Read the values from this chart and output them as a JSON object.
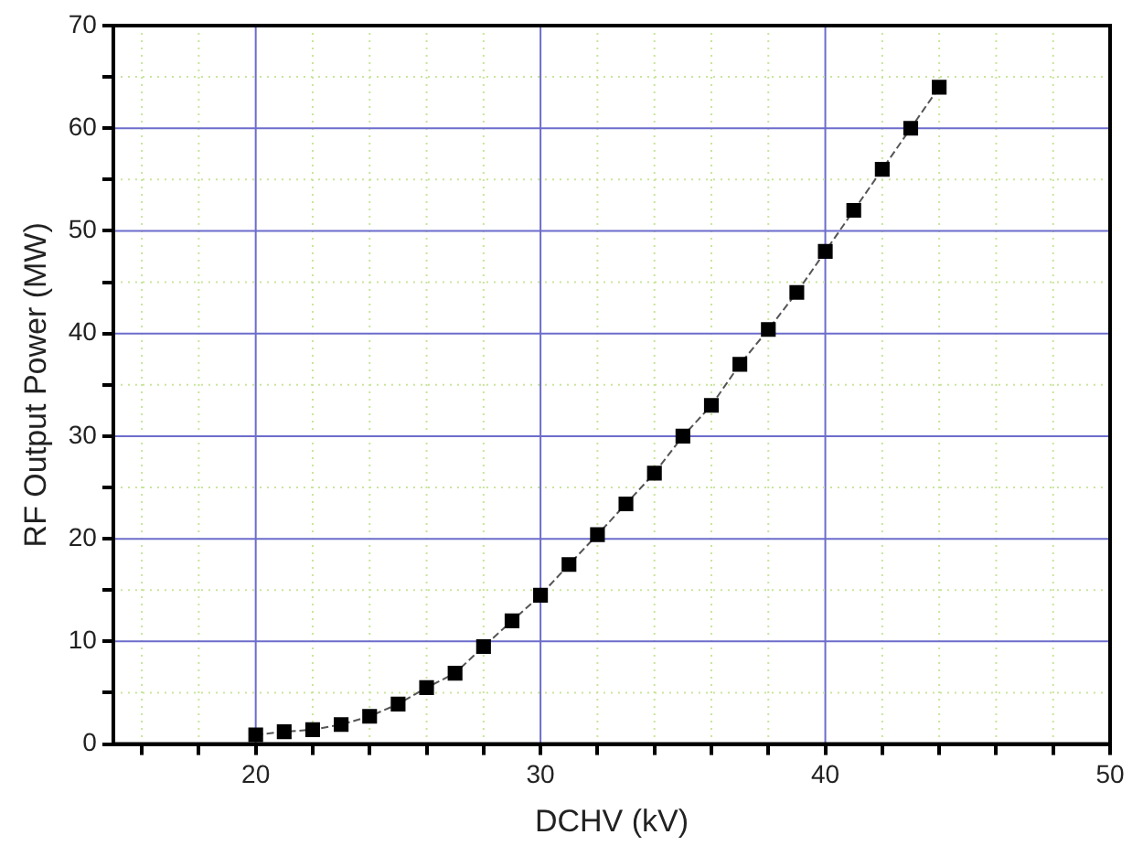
{
  "chart_data": {
    "type": "line",
    "xlabel": "DCHV (kV)",
    "ylabel": "RF Output Power (MW)",
    "x": [
      20,
      21,
      22,
      23,
      24,
      25,
      26,
      27,
      28,
      29,
      30,
      31,
      32,
      33,
      34,
      35,
      36,
      37,
      38,
      39,
      40,
      41,
      42,
      43,
      44
    ],
    "series": [
      {
        "color": "#000000",
        "values": [
          0.9,
          1.2,
          1.4,
          1.9,
          2.7,
          3.9,
          5.5,
          6.9,
          9.5,
          12,
          14.5,
          17.5,
          20.4,
          23.4,
          26.4,
          30,
          33,
          37,
          40.4,
          44,
          48,
          52,
          56,
          60,
          64
        ]
      }
    ],
    "xlim": [
      15,
      50
    ],
    "xticks": [
      {
        "value": 16,
        "label": null
      },
      {
        "value": 18,
        "label": null
      },
      20,
      {
        "value": 22,
        "label": null
      },
      {
        "value": 24,
        "label": null
      },
      {
        "value": 26,
        "label": null
      },
      {
        "value": 28,
        "label": null
      },
      30,
      {
        "value": 32,
        "label": null
      },
      {
        "value": 34,
        "label": null
      },
      {
        "value": 36,
        "label": null
      },
      {
        "value": 38,
        "label": null
      },
      40,
      {
        "value": 42,
        "label": null
      },
      {
        "value": 44,
        "label": null
      },
      {
        "value": 46,
        "label": null
      },
      {
        "value": 48,
        "label": null
      },
      50
    ],
    "ylim": [
      0,
      70
    ],
    "yticks": [
      0,
      {
        "value": 5,
        "label": null
      },
      10,
      {
        "value": 15,
        "label": null
      },
      20,
      {
        "value": 25,
        "label": null
      },
      30,
      {
        "value": 35,
        "label": null
      },
      40,
      {
        "value": 45,
        "label": null
      },
      50,
      {
        "value": 55,
        "label": null
      },
      60,
      {
        "value": 65,
        "label": null
      },
      70
    ],
    "grid": true,
    "marker": "square",
    "line_style": "dashed",
    "legend": false
  }
}
